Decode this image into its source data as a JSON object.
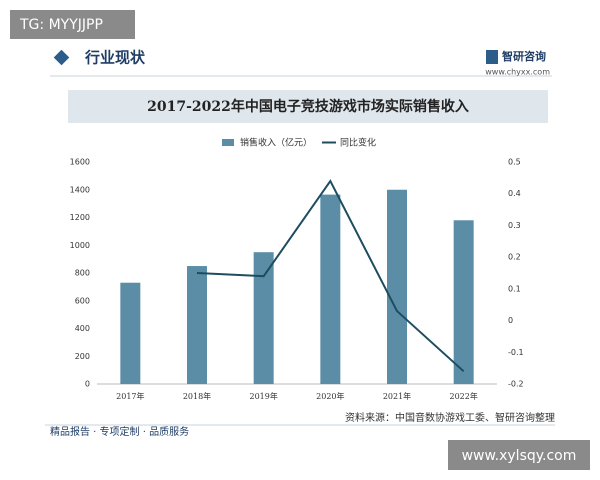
{
  "watermark_top": "TG: MYYJJPP",
  "header": {
    "title": "行业现状",
    "brand": "智研咨询",
    "url": "www.chyxx.com"
  },
  "chart_data": {
    "type": "bar_line",
    "title": "2017-2022年中国电子竞技游戏市场实际销售收入",
    "categories": [
      "2017年",
      "2018年",
      "2019年",
      "2020年",
      "2021年",
      "2022年"
    ],
    "series": [
      {
        "name": "销售收入（亿元）",
        "color": "#5b8ea6",
        "type": "bar",
        "values": [
          730,
          850,
          950,
          1365,
          1400,
          1180
        ]
      },
      {
        "name": "同比变化",
        "color": "#1d4d5e",
        "type": "line",
        "axis": "y2",
        "values": [
          null,
          0.15,
          0.14,
          0.44,
          0.03,
          -0.16
        ]
      }
    ],
    "ylim": [
      0,
      1600
    ],
    "yticks": [
      0,
      200,
      400,
      600,
      800,
      1000,
      1200,
      1400,
      1600
    ],
    "y2lim": [
      -0.2,
      0.5
    ],
    "y2ticks": [
      -0.2,
      -0.1,
      0,
      0.1,
      0.2,
      0.3,
      0.4,
      0.5
    ],
    "legend": "top"
  },
  "source": "资料来源：中国音数协游戏工委、智研咨询整理",
  "footer": "精品报告 · 专项定制 · 品质服务",
  "watermark_bottom": "www.xylsqy.com"
}
